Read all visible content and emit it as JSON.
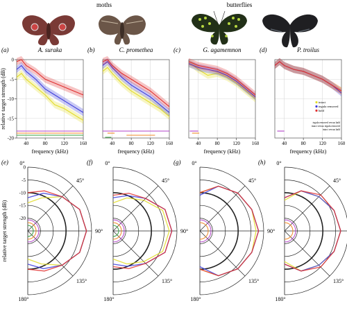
{
  "header": {
    "groups": [
      "moths",
      "butterflies"
    ],
    "specimen_icons": [
      "moth-antheraea-suraka",
      "moth-callosamia-promethea",
      "butterfly-graphium-agamemnon",
      "butterfly-papilio-troilus"
    ]
  },
  "colors": {
    "intact": "#e2dc28",
    "tegula_removed": "#3c3cdc",
    "bald": "#e03030",
    "sig_green": "#3aa040",
    "sig_orange": "#f08a28",
    "sig_purple": "#b040c8"
  },
  "chart_data": [
    {
      "panel": "(a)",
      "title": "A. suraka",
      "type": "line",
      "xlabel": "frequency (kHz)",
      "ylabel": "relative target strength (dB)",
      "xlim": [
        20,
        160
      ],
      "ylim": [
        -20,
        0
      ],
      "xticks": [
        "40",
        "80",
        "120",
        "160"
      ],
      "yticks": [
        "0",
        "-5",
        "-10",
        "-15",
        "-20"
      ],
      "grid": true,
      "x": [
        20,
        30,
        40,
        60,
        80,
        100,
        120,
        140,
        160
      ],
      "series": [
        {
          "name": "intact",
          "values": [
            -4.5,
            -3.5,
            -5,
            -7,
            -9,
            -11.5,
            -12.5,
            -14,
            -15.5
          ]
        },
        {
          "name": "tegula removed",
          "values": [
            -2.5,
            -1.5,
            -3,
            -5,
            -7.5,
            -9,
            -10.5,
            -12,
            -13.5
          ]
        },
        {
          "name": "bald",
          "values": [
            -0.5,
            0,
            -1.5,
            -3,
            -5,
            -6,
            -7,
            -8,
            -9
          ]
        }
      ],
      "significance_bars": [
        {
          "color": "sig_purple",
          "range": [
            20,
            160
          ]
        },
        {
          "color": "sig_orange",
          "range": [
            20,
            160
          ]
        },
        {
          "color": "sig_green",
          "range": [
            20,
            160
          ]
        }
      ]
    },
    {
      "panel": "(b)",
      "title": "C. promethea",
      "type": "line",
      "xlabel": "frequency (kHz)",
      "xlim": [
        20,
        160
      ],
      "ylim": [
        -20,
        0
      ],
      "xticks": [
        "40",
        "80",
        "120",
        "160"
      ],
      "grid": true,
      "x": [
        20,
        30,
        40,
        60,
        80,
        100,
        120,
        140,
        160
      ],
      "series": [
        {
          "name": "intact",
          "values": [
            -3,
            -2,
            -3.5,
            -6,
            -8,
            -9.5,
            -11,
            -12.5,
            -14.5
          ]
        },
        {
          "name": "tegula removed",
          "values": [
            -1.5,
            -0.5,
            -2,
            -4.5,
            -6.5,
            -8,
            -9.5,
            -11.5,
            -13.5
          ]
        },
        {
          "name": "bald",
          "values": [
            -0.5,
            0,
            -1.5,
            -3.5,
            -5,
            -6.5,
            -8,
            -10,
            -12
          ]
        }
      ],
      "significance_bars": [
        {
          "color": "sig_purple",
          "range": [
            20,
            160
          ]
        },
        {
          "color": "sig_orange",
          "range": [
            30,
            45
          ]
        },
        {
          "color": "sig_orange",
          "range": [
            70,
            130
          ]
        },
        {
          "color": "sig_green",
          "range": [
            25,
            38
          ]
        }
      ]
    },
    {
      "panel": "(c)",
      "title": "G. agamemnon",
      "type": "line",
      "xlabel": "frequency (kHz)",
      "xlim": [
        20,
        160
      ],
      "ylim": [
        -20,
        0
      ],
      "xticks": [
        "40",
        "80",
        "120",
        "160"
      ],
      "grid": true,
      "x": [
        20,
        30,
        40,
        60,
        80,
        100,
        120,
        140,
        160
      ],
      "series": [
        {
          "name": "intact",
          "values": [
            -1,
            -1.5,
            -2.5,
            -4,
            -3.5,
            -4.5,
            -6,
            -8,
            -10
          ]
        },
        {
          "name": "tegula removed",
          "values": [
            -1,
            -1.5,
            -2,
            -2.5,
            -3,
            -4,
            -5.5,
            -7.5,
            -9.5
          ]
        },
        {
          "name": "bald",
          "values": [
            -0.5,
            -1,
            -1.5,
            -2,
            -2.5,
            -3.5,
            -5,
            -7,
            -9
          ]
        }
      ],
      "significance_bars": [
        {
          "color": "sig_purple",
          "range": [
            22,
            40
          ]
        },
        {
          "color": "sig_orange",
          "range": [
            27,
            42
          ]
        }
      ]
    },
    {
      "panel": "(d)",
      "title": "P. troilus",
      "type": "line",
      "xlabel": "frequency (kHz)",
      "xlim": [
        20,
        160
      ],
      "ylim": [
        -20,
        0
      ],
      "xticks": [
        "40",
        "80",
        "120",
        "160"
      ],
      "grid": true,
      "x": [
        20,
        30,
        40,
        60,
        80,
        100,
        120,
        140,
        160
      ],
      "series": [
        {
          "name": "intact",
          "values": [
            -1.5,
            -0.5,
            -1.5,
            -2.5,
            -3,
            -4,
            -5,
            -6.5,
            -8
          ]
        },
        {
          "name": "tegula removed",
          "values": [
            -1.5,
            -0.5,
            -1.5,
            -2.5,
            -3,
            -4,
            -5,
            -6.5,
            -8.5
          ]
        },
        {
          "name": "bald",
          "values": [
            -1.5,
            -0.5,
            -1.5,
            -2.5,
            -3,
            -4,
            -5,
            -6.5,
            -8
          ]
        }
      ],
      "legend": [
        "intact",
        "tegula removed",
        "bald"
      ],
      "significance_legend": [
        "tegula removed versus bald",
        "intact versus tegula removed",
        "intact versus bald"
      ],
      "significance_bars": [
        {
          "color": "sig_purple",
          "range": [
            25,
            40
          ]
        }
      ]
    }
  ],
  "polar": {
    "ylabel": "relative target strength (dB)",
    "rticks": [
      "0",
      "-5",
      "-10",
      "-15",
      "-20"
    ],
    "angles": [
      "0°",
      "45°",
      "90°",
      "135°",
      "180°"
    ],
    "panels": [
      {
        "panel": "(e)",
        "intact": [
          -14,
          -11,
          -6,
          -3,
          -2,
          -3,
          -6,
          -11,
          -14
        ],
        "tegula removed": [
          -12,
          -9,
          -6,
          -3,
          -2,
          -3,
          -6,
          -9,
          -12
        ],
        "bald": [
          -10,
          -8,
          -6,
          -3,
          -2,
          -3,
          -6,
          -8,
          -10
        ]
      },
      {
        "panel": "(f)",
        "intact": [
          -14,
          -11,
          -8,
          -4,
          -3,
          -4,
          -8,
          -11,
          -14
        ],
        "tegula removed": [
          -12,
          -10,
          -7,
          -3,
          -2,
          -3,
          -7,
          -10,
          -12
        ],
        "bald": [
          -11,
          -9,
          -7,
          -3,
          -2,
          -3,
          -7,
          -9,
          -11
        ]
      },
      {
        "panel": "(g)",
        "intact": [
          -10,
          -6,
          -4,
          -3,
          -3,
          -3,
          -4,
          -6,
          -10
        ],
        "tegula removed": [
          -11,
          -6,
          -4,
          -3,
          -2,
          -3,
          -4,
          -6,
          -11
        ],
        "bald": [
          -10,
          -6,
          -4,
          -3,
          -2,
          -3,
          -4,
          -6,
          -10
        ]
      },
      {
        "panel": "(h)",
        "intact": [
          -13,
          -8,
          -6,
          -4,
          -3,
          -4,
          -6,
          -8,
          -13
        ],
        "tegula removed": [
          -12,
          -8,
          -6,
          -4,
          -3,
          -4,
          -6,
          -8,
          -12
        ],
        "bald": [
          -12,
          -8,
          -5,
          -4,
          -3,
          -4,
          -5,
          -8,
          -12
        ]
      }
    ]
  }
}
